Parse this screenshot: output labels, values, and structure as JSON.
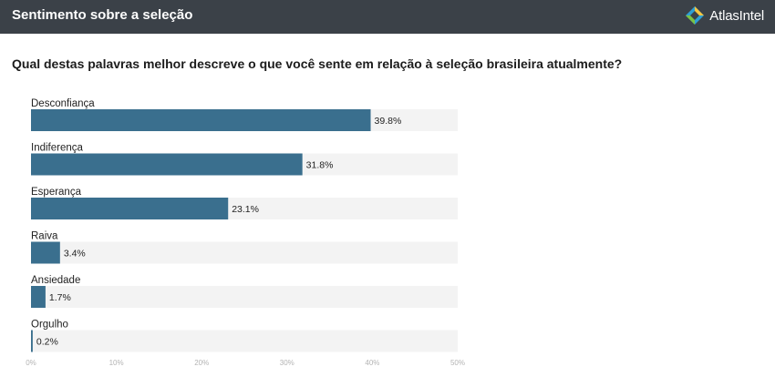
{
  "header": {
    "title": "Sentimento sobre a seleção",
    "brand": "AtlasIntel",
    "brand_colors": [
      "#2e9fd4",
      "#f5c542",
      "#7cc242"
    ],
    "bar_color": "#3b4148"
  },
  "question": "Qual destas palavras melhor descreve o que você sente em relação à seleção brasileira atualmente?",
  "chart_data": {
    "type": "bar",
    "orientation": "horizontal",
    "categories": [
      "Desconfiança",
      "Indiferença",
      "Esperança",
      "Raiva",
      "Ansiedade",
      "Orgulho"
    ],
    "values": [
      39.8,
      31.8,
      23.1,
      3.4,
      1.7,
      0.2
    ],
    "value_labels": [
      "39.8%",
      "31.8%",
      "23.1%",
      "3.4%",
      "1.7%",
      "0.2%"
    ],
    "xlim": [
      0,
      50
    ],
    "x_ticks": [
      "0%",
      "10%",
      "20%",
      "30%",
      "40%",
      "50%"
    ],
    "bar_color": "#3a6f8e",
    "track_color": "#f3f3f3",
    "grid": false,
    "legend": "none"
  }
}
